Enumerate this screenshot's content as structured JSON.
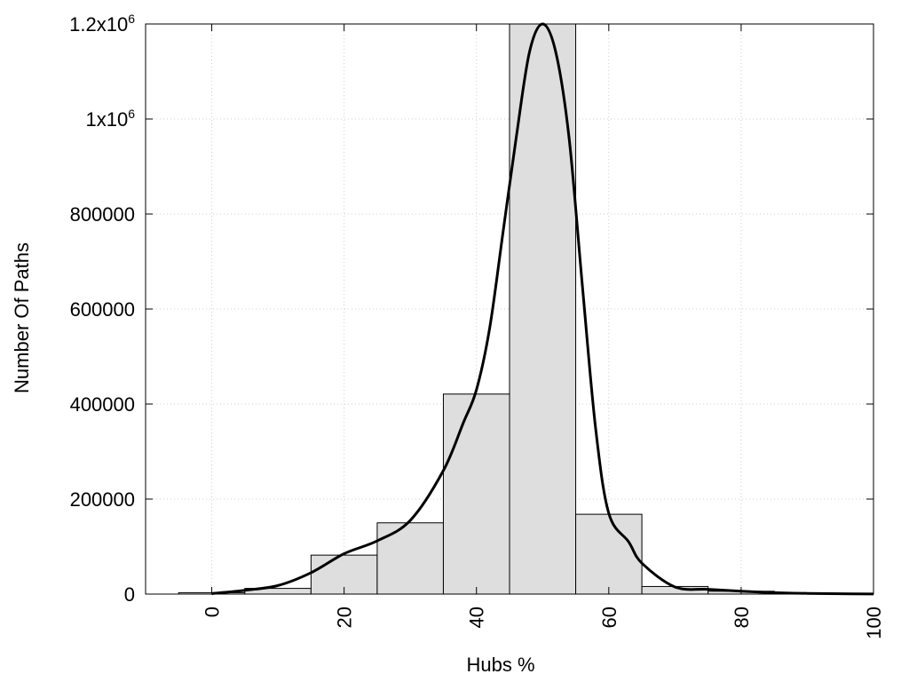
{
  "chart_data": {
    "type": "bar",
    "xlabel": "Hubs %",
    "ylabel": "Number Of Paths",
    "xlim": [
      -10,
      100
    ],
    "ylim": [
      0,
      1200000
    ],
    "x_ticks": [
      0,
      20,
      40,
      60,
      80,
      100
    ],
    "y_ticks": [
      {
        "value": 0,
        "label": "0"
      },
      {
        "value": 200000,
        "label": "200000"
      },
      {
        "value": 400000,
        "label": "400000"
      },
      {
        "value": 600000,
        "label": "600000"
      },
      {
        "value": 800000,
        "label": "800000"
      },
      {
        "value": 1000000,
        "label": "1x10",
        "sup": "6"
      },
      {
        "value": 1200000,
        "label": "1.2x10",
        "sup": "6"
      }
    ],
    "grid": true,
    "bar_width": 10,
    "bar_fill": "#dedede",
    "bar_stroke": "#000000",
    "curve_color": "#000000",
    "bars": [
      {
        "x": 0,
        "y": 3000
      },
      {
        "x": 10,
        "y": 12000
      },
      {
        "x": 20,
        "y": 82000
      },
      {
        "x": 30,
        "y": 150000
      },
      {
        "x": 40,
        "y": 421000
      },
      {
        "x": 50,
        "y": 1200000
      },
      {
        "x": 60,
        "y": 168000
      },
      {
        "x": 70,
        "y": 16000
      },
      {
        "x": 80,
        "y": 6000
      },
      {
        "x": 90,
        "y": 2000
      }
    ],
    "curve": [
      [
        0,
        1000
      ],
      [
        5,
        8000
      ],
      [
        10,
        18000
      ],
      [
        15,
        45000
      ],
      [
        20,
        85000
      ],
      [
        25,
        112000
      ],
      [
        30,
        155000
      ],
      [
        35,
        260000
      ],
      [
        38,
        360000
      ],
      [
        40,
        430000
      ],
      [
        42,
        560000
      ],
      [
        44,
        760000
      ],
      [
        46,
        960000
      ],
      [
        48,
        1140000
      ],
      [
        50,
        1200000
      ],
      [
        52,
        1140000
      ],
      [
        54,
        960000
      ],
      [
        56,
        650000
      ],
      [
        58,
        350000
      ],
      [
        60,
        170000
      ],
      [
        63,
        110000
      ],
      [
        65,
        65000
      ],
      [
        70,
        15000
      ],
      [
        75,
        10000
      ],
      [
        80,
        6000
      ],
      [
        85,
        3000
      ],
      [
        90,
        1500
      ],
      [
        95,
        700
      ],
      [
        100,
        300
      ]
    ]
  }
}
